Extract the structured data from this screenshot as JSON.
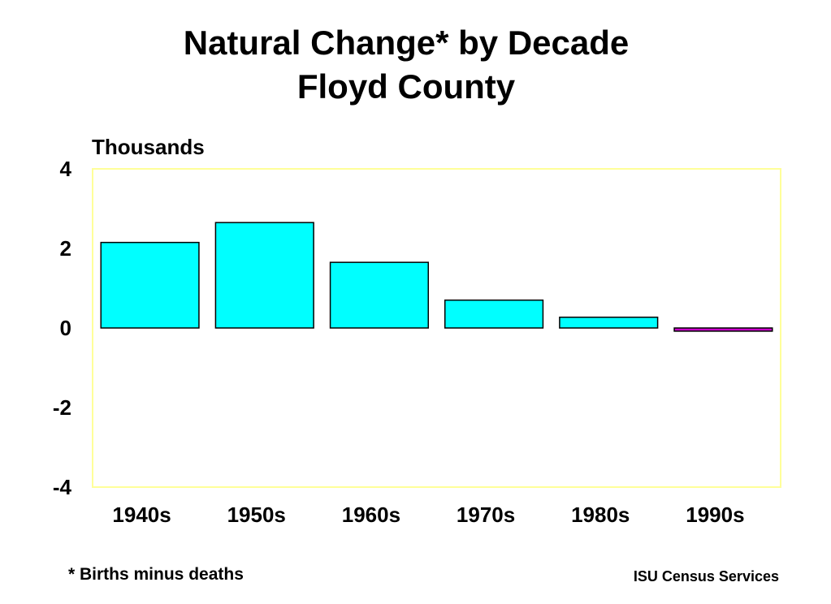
{
  "chart_data": {
    "type": "bar",
    "title_line1": "Natural Change* by Decade",
    "title_line2": "Floyd County",
    "ylabel": "Thousands",
    "categories": [
      "1940s",
      "1950s",
      "1960s",
      "1970s",
      "1980s",
      "1990s"
    ],
    "values": [
      2.15,
      2.65,
      1.65,
      0.7,
      0.27,
      -0.08
    ],
    "ylim": [
      -4,
      4
    ],
    "yticks": [
      4,
      2,
      0,
      -2,
      -4
    ],
    "grid": false,
    "colors": {
      "positive": "#00FFFF",
      "negative": "#CC00CC",
      "plot_border": "#FFFF99",
      "bar_stroke": "#000000"
    }
  },
  "footnote": "* Births minus deaths",
  "credit": "ISU Census Services"
}
